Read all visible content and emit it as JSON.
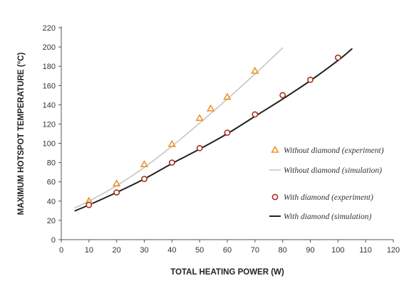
{
  "colors": {
    "orange": "#f0932b",
    "light_gray": "#c6c6c6",
    "brown": "#a4341f",
    "black": "#222222",
    "axis": "#555555"
  },
  "chart_data": {
    "type": "line",
    "title": "",
    "xlabel": "TOTAL HEATING POWER (W)",
    "ylabel": "MAXIMUM HOTSPOT TEMPERATURE (°C)",
    "xlim": [
      0,
      120
    ],
    "ylim": [
      0,
      220
    ],
    "xticks": [
      0,
      10,
      20,
      30,
      40,
      50,
      60,
      70,
      80,
      90,
      100,
      110,
      120
    ],
    "yticks": [
      0,
      20,
      40,
      60,
      80,
      100,
      120,
      140,
      160,
      180,
      200,
      220
    ],
    "grid": false,
    "legend_position": "right",
    "series": [
      {
        "name": "Without diamond (experiment)",
        "style": "triangle-marker",
        "color": "#f0932b",
        "x": [
          10,
          20,
          30,
          40,
          50,
          54,
          60,
          70
        ],
        "y": [
          40,
          58,
          78,
          99,
          126,
          136,
          148,
          175
        ]
      },
      {
        "name": "Without diamond (simulation)",
        "style": "line",
        "color": "#c6c6c6",
        "x": [
          5,
          10,
          20,
          30,
          40,
          50,
          60,
          70,
          80
        ],
        "y": [
          33,
          40,
          56,
          75,
          97,
          121,
          146,
          172,
          199
        ]
      },
      {
        "name": "With diamond (experiment)",
        "style": "circle-marker",
        "color": "#a4341f",
        "x": [
          10,
          20,
          30,
          40,
          50,
          60,
          70,
          80,
          90,
          100
        ],
        "y": [
          36,
          49,
          63,
          80,
          95,
          111,
          130,
          150,
          166,
          189
        ]
      },
      {
        "name": "With diamond (simulation)",
        "style": "line",
        "color": "#222222",
        "x": [
          5,
          10,
          20,
          30,
          40,
          50,
          60,
          70,
          80,
          90,
          100,
          105
        ],
        "y": [
          30,
          36,
          49,
          63,
          79,
          94,
          110,
          128,
          146,
          165,
          186,
          198
        ]
      }
    ]
  }
}
